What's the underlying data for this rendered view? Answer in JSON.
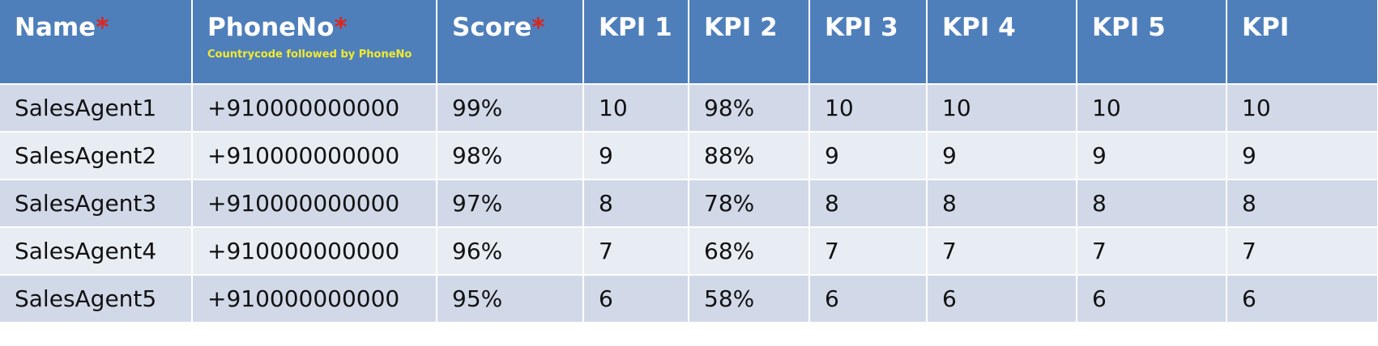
{
  "table": {
    "headers": [
      {
        "label": "Name",
        "required": "*",
        "note": ""
      },
      {
        "label": "PhoneNo",
        "required": "*",
        "note": "Countrycode followed by PhoneNo"
      },
      {
        "label": "Score",
        "required": "*",
        "note": ""
      },
      {
        "label": "KPI 1",
        "required": "",
        "note": ""
      },
      {
        "label": "KPI 2",
        "required": "",
        "note": ""
      },
      {
        "label": "KPI 3",
        "required": "",
        "note": ""
      },
      {
        "label": "KPI 4",
        "required": "",
        "note": ""
      },
      {
        "label": "KPI 5",
        "required": "",
        "note": ""
      },
      {
        "label": "KPI",
        "required": "",
        "note": ""
      }
    ],
    "rows": [
      [
        "SalesAgent1",
        "+910000000000",
        "99%",
        "10",
        "98%",
        "10",
        "10",
        "10",
        "10"
      ],
      [
        "SalesAgent2",
        "+910000000000",
        "98%",
        "9",
        "88%",
        "9",
        "9",
        "9",
        "9"
      ],
      [
        "SalesAgent3",
        "+910000000000",
        "97%",
        "8",
        "78%",
        "8",
        "8",
        "8",
        "8"
      ],
      [
        "SalesAgent4",
        "+910000000000",
        "96%",
        "7",
        "68%",
        "7",
        "7",
        "7",
        "7"
      ],
      [
        "SalesAgent5",
        "+910000000000",
        "95%",
        "6",
        "58%",
        "6",
        "6",
        "6",
        "6"
      ]
    ]
  },
  "colors": {
    "header_bg": "#4e7fbb",
    "header_text": "#ffffff",
    "required_mark": "#e0241c",
    "note_text": "#f2ea2e",
    "row_odd": "#d1d9e8",
    "row_even": "#e8ecf3"
  }
}
